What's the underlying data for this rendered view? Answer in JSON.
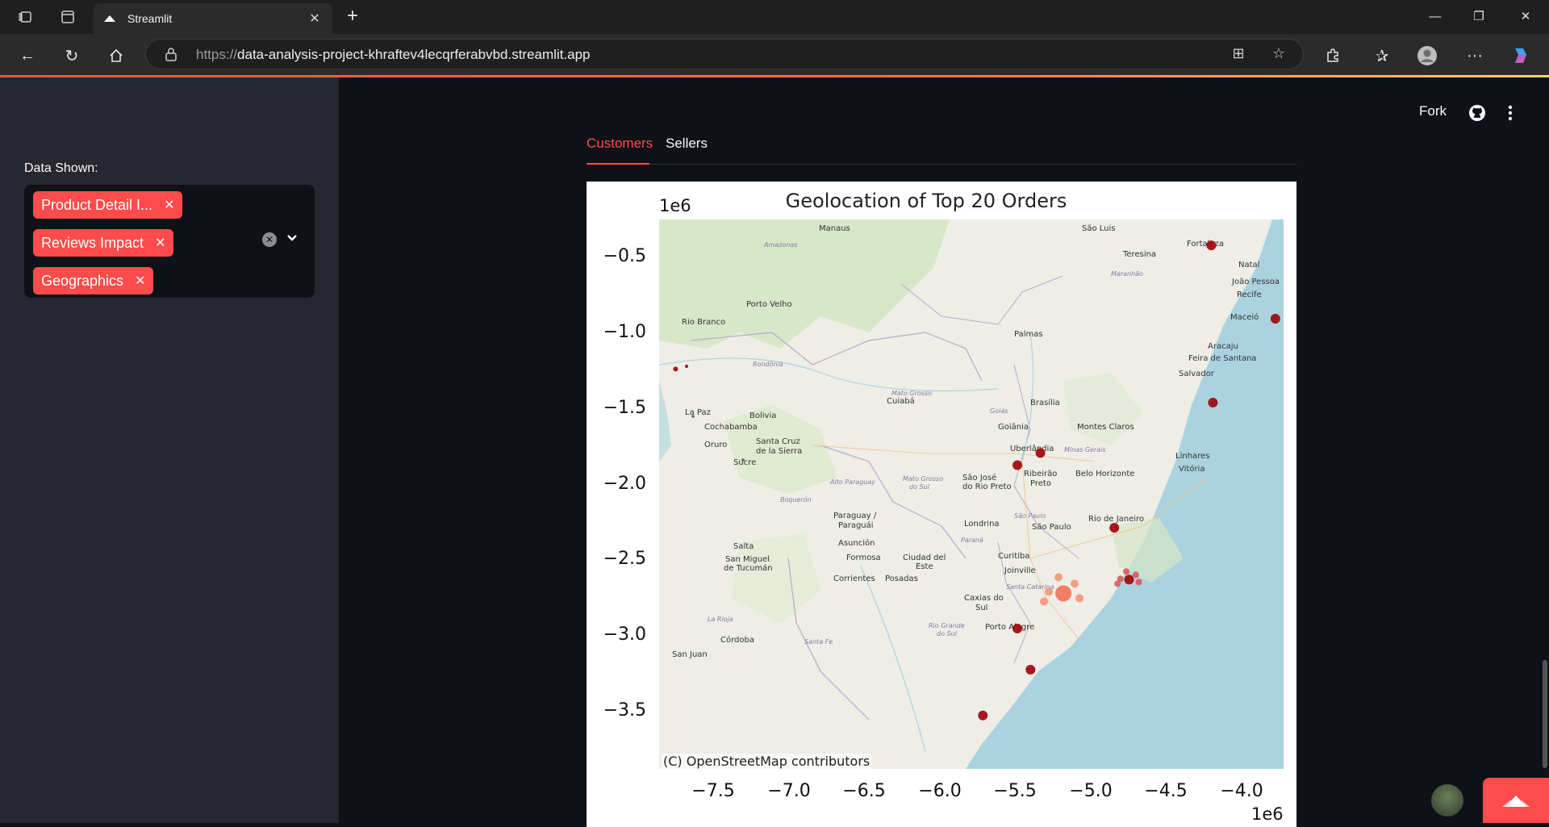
{
  "browser": {
    "tab_title": "Streamlit",
    "url_prefix": "https://",
    "url_host": "data-analysis-project-khraftev4lecqrferabvbd.streamlit.app"
  },
  "sidebar": {
    "label": "Data Shown:",
    "chips": [
      {
        "label": "Product Detail I..."
      },
      {
        "label": "Reviews Impact"
      },
      {
        "label": "Geographics"
      }
    ]
  },
  "header": {
    "fork_label": "Fork"
  },
  "tabs": [
    {
      "label": "Customers",
      "active": true
    },
    {
      "label": "Sellers",
      "active": false
    }
  ],
  "figure": {
    "title": "Geolocation of Top 20 Orders",
    "y_offset_label": "1e6",
    "x_offset_label": "1e6",
    "attribution": "(C) OpenStreetMap contributors",
    "yticks": [
      "−0.5",
      "−1.0",
      "−1.5",
      "−2.0",
      "−2.5",
      "−3.0",
      "−3.5"
    ],
    "xticks": [
      "−7.5",
      "−7.0",
      "−6.5",
      "−6.0",
      "−5.5",
      "−5.0",
      "−4.5",
      "−4.0"
    ]
  },
  "chart_data": {
    "type": "scatter",
    "title": "Geolocation of Top 20 Orders",
    "xlim": [
      -7.65,
      -3.85
    ],
    "ylim": [
      -3.85,
      -0.25
    ],
    "axis_scale_label": "1e6",
    "points": [
      {
        "city": "Fortaleza",
        "x": -4.29,
        "y": -0.42
      },
      {
        "city": "Recife",
        "x": -3.9,
        "y": -0.9
      },
      {
        "city": "Salvador",
        "x": -4.28,
        "y": -1.45
      },
      {
        "city": "Brasília",
        "x": -5.33,
        "y": -1.78
      },
      {
        "city": "Goiânia",
        "x": -5.47,
        "y": -1.86
      },
      {
        "city": "Belo Horizonte",
        "x": -4.88,
        "y": -2.27
      },
      {
        "city": "Rio de Janeiro",
        "x": -4.79,
        "y": -2.61
      },
      {
        "city": "São Paulo",
        "x": -5.19,
        "y": -2.7
      },
      {
        "city": "Curitiba",
        "x": -5.47,
        "y": -2.93
      },
      {
        "city": "Joinville",
        "x": -5.39,
        "y": -3.2
      },
      {
        "city": "Porto Alegre",
        "x": -5.68,
        "y": -3.5
      },
      {
        "city": "Rio Branco",
        "x": -7.55,
        "y": -1.23
      }
    ]
  }
}
